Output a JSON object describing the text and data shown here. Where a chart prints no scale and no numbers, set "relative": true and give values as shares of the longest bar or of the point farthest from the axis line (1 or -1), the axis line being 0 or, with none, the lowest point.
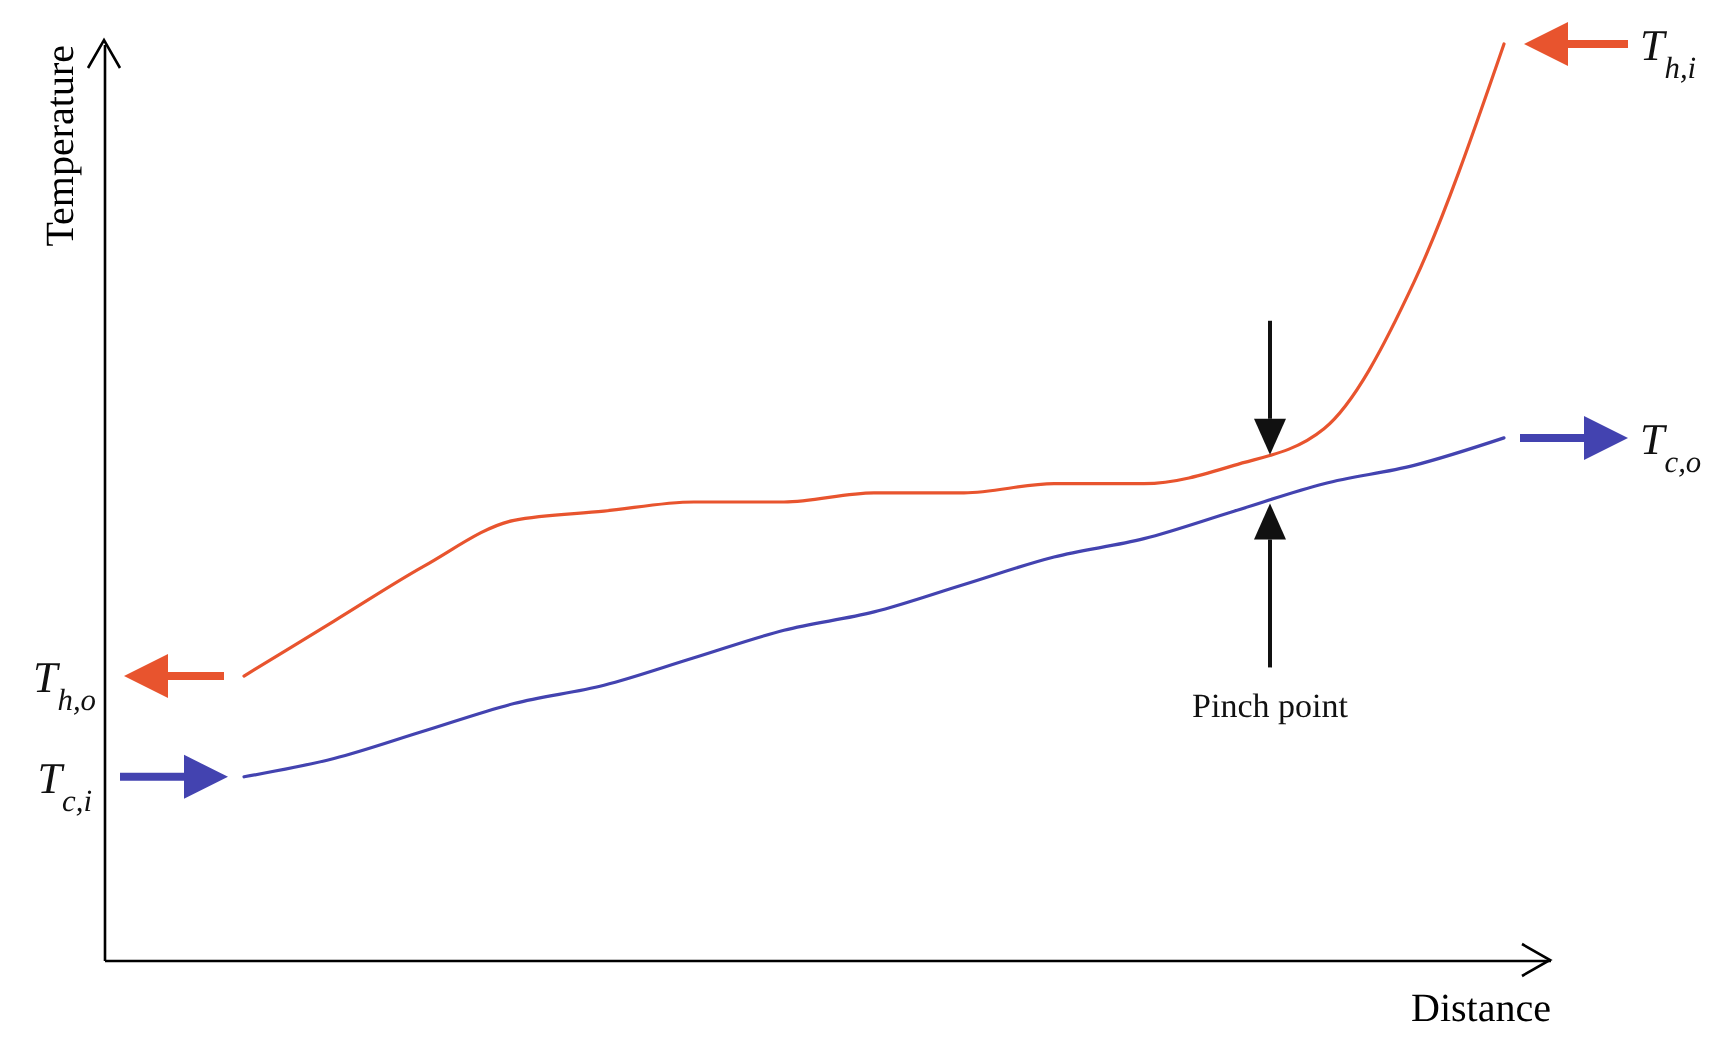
{
  "chart_data": {
    "type": "line",
    "relative": true,
    "xlabel": "Distance",
    "ylabel": "Temperature",
    "categories": [
      null,
      null,
      null,
      null,
      null,
      null,
      null,
      null,
      null,
      null,
      null,
      null,
      null,
      null,
      null
    ],
    "series": [
      {
        "color": "#e8542e",
        "values": [
          0.31,
          0.37,
          0.43,
          0.48,
          0.49,
          0.5,
          0.5,
          0.51,
          0.51,
          0.52,
          0.52,
          0.54,
          0.58,
          0.74,
          1
        ]
      },
      {
        "color": "#4343b0",
        "values": [
          0.2,
          0.22,
          0.25,
          0.28,
          0.3,
          0.33,
          0.36,
          0.38,
          0.41,
          0.44,
          0.46,
          0.49,
          0.52,
          0.54,
          0.57
        ]
      }
    ],
    "annotations": [
      "T$_{h,i}$",
      "T$_{h,o}$",
      "T$_{c,i}$",
      "T$_{c,o}$",
      "Pinch point"
    ]
  }
}
